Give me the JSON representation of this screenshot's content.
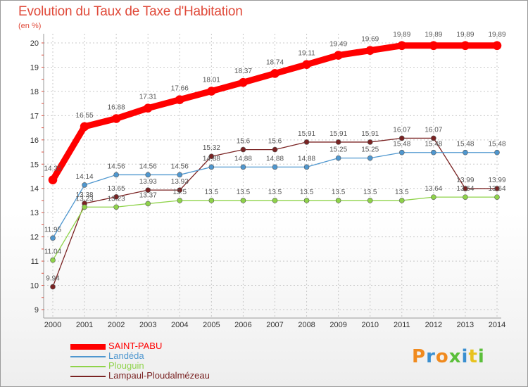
{
  "title": "Evolution du Taux de Taxe d'Habitation",
  "subtitle": "(en %)",
  "logo": {
    "text": "Proxiti",
    "colors": [
      "#f08a1e",
      "#3a8fd0",
      "#f08a1e",
      "#5bbf3a",
      "#3a8fd0",
      "#e8c21e",
      "#5bbf3a"
    ]
  },
  "chart_data": {
    "type": "line",
    "x": [
      2000,
      2001,
      2002,
      2003,
      2004,
      2005,
      2006,
      2007,
      2008,
      2009,
      2010,
      2011,
      2012,
      2013,
      2014
    ],
    "ylim": [
      9,
      20
    ],
    "yticks": [
      9,
      10,
      11,
      12,
      13,
      14,
      15,
      16,
      17,
      18,
      19,
      20
    ],
    "legend": "bottom-left",
    "series": [
      {
        "name": "SAINT-PABU",
        "color": "#ff0000",
        "labels": [
          "14.35",
          "16.55",
          "16.88",
          "17.31",
          "17.66",
          "18.01",
          "18.37",
          "18.74",
          "19.11",
          "19.49",
          "19.69",
          "19.89",
          "19.89",
          "19.89",
          "19.89"
        ],
        "values": [
          14.35,
          16.55,
          16.88,
          17.31,
          17.66,
          18.01,
          18.37,
          18.74,
          19.11,
          19.49,
          19.69,
          19.89,
          19.89,
          19.89,
          19.89
        ]
      },
      {
        "name": "Landéda",
        "color": "#4f97cf",
        "labels": [
          "11.95",
          "14.14",
          "14.56",
          "14.56",
          "14.56",
          "14.88",
          "14.88",
          "14.88",
          "14.88",
          "15.25",
          "15.25",
          "15.48",
          "15.48",
          "15.48",
          "15.48"
        ],
        "values": [
          11.95,
          14.14,
          14.56,
          14.56,
          14.56,
          14.88,
          14.88,
          14.88,
          14.88,
          15.25,
          15.25,
          15.48,
          15.48,
          15.48,
          15.48
        ]
      },
      {
        "name": "Plouguin",
        "color": "#8fd34a",
        "labels": [
          "11.04",
          "13.23",
          "13.23",
          "13.37",
          "13.5",
          "13.5",
          "13.5",
          "13.5",
          "13.5",
          "13.5",
          "13.5",
          "13.5",
          "13.64",
          "13.64",
          "13.64"
        ],
        "values": [
          11.04,
          13.23,
          13.23,
          13.37,
          13.5,
          13.5,
          13.5,
          13.5,
          13.5,
          13.5,
          13.5,
          13.5,
          13.64,
          13.64,
          13.64
        ]
      },
      {
        "name": "Lampaul-Ploudalmézeau",
        "color": "#7a2323",
        "labels": [
          "9.94",
          "13.38",
          "13.65",
          "13.93",
          "13.93",
          "15.32",
          "15.6",
          "15.6",
          "15.91",
          "15.91",
          "15.91",
          "16.07",
          "16.07",
          "13.99",
          "13.99"
        ],
        "values": [
          9.94,
          13.38,
          13.65,
          13.93,
          13.93,
          15.32,
          15.6,
          15.6,
          15.91,
          15.91,
          15.91,
          16.07,
          16.07,
          13.99,
          13.99
        ]
      }
    ]
  }
}
